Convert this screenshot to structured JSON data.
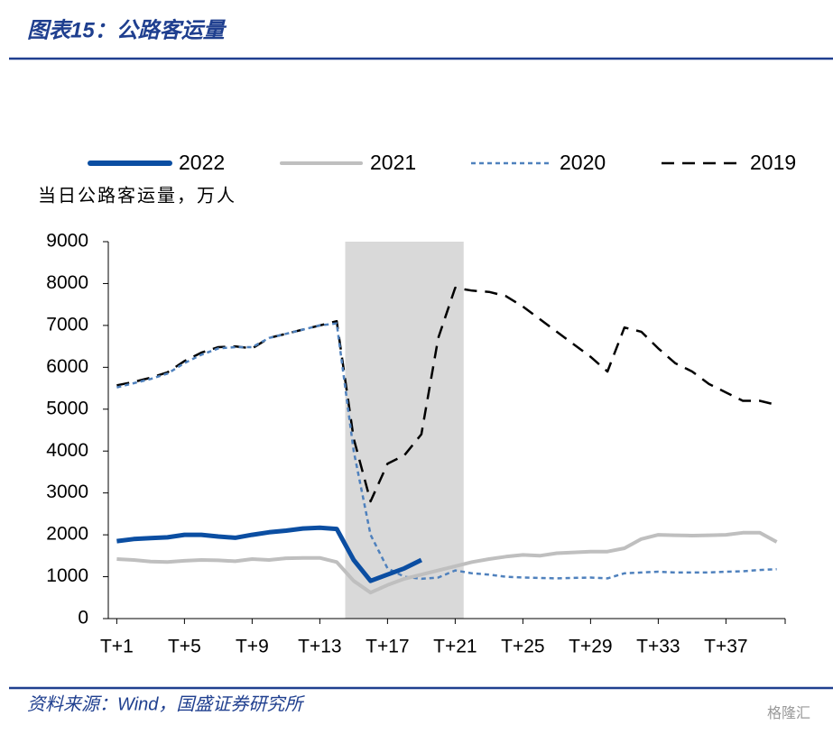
{
  "header": {
    "title": "图表15：公路客运量"
  },
  "chart_data": {
    "type": "line",
    "y_label": "当日公路客运量，万人",
    "categories": [
      "T+1",
      null,
      null,
      null,
      "T+5",
      null,
      null,
      null,
      "T+9",
      null,
      null,
      null,
      "T+13",
      null,
      null,
      null,
      "T+17",
      null,
      null,
      null,
      "T+21",
      null,
      null,
      null,
      "T+25",
      null,
      null,
      null,
      "T+29",
      null,
      null,
      null,
      "T+33",
      null,
      null,
      null,
      "T+37",
      null,
      null,
      null
    ],
    "highlight_categories": [
      14,
      20
    ],
    "highlight_color": "#d9d9d9",
    "ylim": [
      0,
      9000
    ],
    "yticks": [
      0,
      1000,
      2000,
      3000,
      4000,
      5000,
      6000,
      7000,
      8000,
      9000
    ],
    "series": [
      {
        "name": "2022",
        "color": "#0b4ea2",
        "style": "solid-thick",
        "values": [
          1850,
          1900,
          1920,
          1940,
          2000,
          2000,
          1960,
          1930,
          2000,
          2060,
          2100,
          2150,
          2170,
          2140,
          1400,
          900,
          1050,
          1200,
          1400,
          null,
          null,
          null,
          null,
          null,
          null,
          null,
          null,
          null,
          null,
          null,
          null,
          null,
          null,
          null,
          null,
          null,
          null,
          null,
          null,
          null
        ]
      },
      {
        "name": "2021",
        "color": "#bfbfbf",
        "style": "solid",
        "values": [
          1420,
          1400,
          1360,
          1350,
          1380,
          1400,
          1390,
          1370,
          1420,
          1400,
          1440,
          1450,
          1450,
          1350,
          900,
          620,
          800,
          950,
          1050,
          1150,
          1250,
          1350,
          1420,
          1480,
          1520,
          1500,
          1560,
          1580,
          1600,
          1600,
          1680,
          1900,
          2000,
          1990,
          1980,
          1990,
          2000,
          2050,
          2050,
          1830
        ]
      },
      {
        "name": "2020",
        "color": "#4f81bd",
        "style": "dotted",
        "values": [
          5520,
          5620,
          5720,
          5850,
          6100,
          6300,
          6450,
          6480,
          6480,
          6700,
          6800,
          6900,
          7000,
          7050,
          4000,
          2000,
          1200,
          1000,
          950,
          980,
          1150,
          1080,
          1050,
          1000,
          980,
          970,
          960,
          970,
          980,
          960,
          1080,
          1100,
          1120,
          1100,
          1100,
          1100,
          1120,
          1130,
          1160,
          1180
        ]
      },
      {
        "name": "2019",
        "color": "#000000",
        "style": "dashed",
        "values": [
          5570,
          5650,
          5750,
          5880,
          6150,
          6350,
          6480,
          6500,
          6450,
          6700,
          6800,
          6900,
          7000,
          7100,
          4300,
          2800,
          3700,
          3900,
          4400,
          6700,
          7900,
          7830,
          7800,
          7700,
          7450,
          7150,
          6850,
          6550,
          6250,
          5900,
          6950,
          6850,
          6450,
          6100,
          5900,
          5600,
          5400,
          5200,
          5200,
          5100
        ]
      }
    ]
  },
  "footer": {
    "source": "资料来源：Wind，国盛证券研究所",
    "watermark": "格隆汇"
  }
}
